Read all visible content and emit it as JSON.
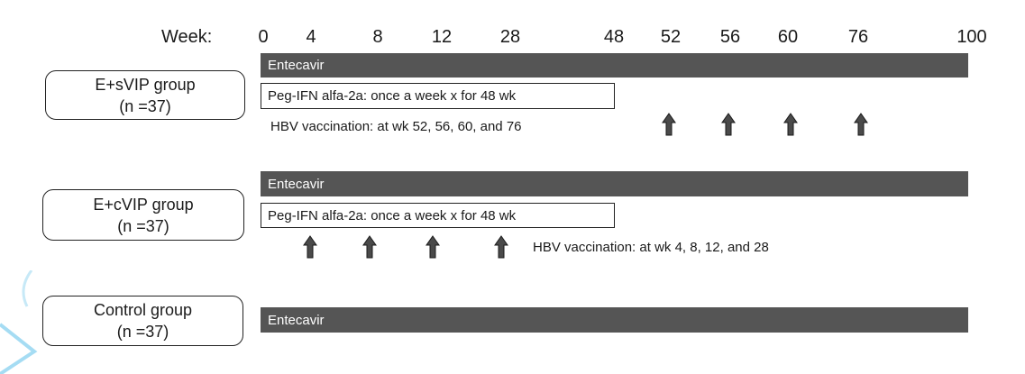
{
  "timeline": {
    "label": "Week:",
    "ticks": [
      "0",
      "4",
      "8",
      "12",
      "28",
      "48",
      "52",
      "56",
      "60",
      "76",
      "100"
    ]
  },
  "groups": [
    {
      "name": "E+sVIP group",
      "n": "(n =37)",
      "entecavir_label": "Entecavir",
      "peg_label": "Peg-IFN alfa-2a: once a week x for 48 wk",
      "vaccination_note": "HBV vaccination: at wk 52, 56, 60, and 76",
      "vaccination_weeks": [
        "52",
        "56",
        "60",
        "76"
      ]
    },
    {
      "name": "E+cVIP group",
      "n": "(n =37)",
      "entecavir_label": "Entecavir",
      "peg_label": "Peg-IFN alfa-2a: once a week x for 48 wk",
      "vaccination_note": "HBV vaccination: at wk 4, 8, 12, and 28",
      "vaccination_weeks": [
        "4",
        "8",
        "12",
        "28"
      ]
    },
    {
      "name": "Control group",
      "n": "(n =37)",
      "entecavir_label": "Entecavir"
    }
  ],
  "colors": {
    "bar": "#555555",
    "arrow": "#4a4a4a",
    "decoration": "#8fd3f0"
  }
}
